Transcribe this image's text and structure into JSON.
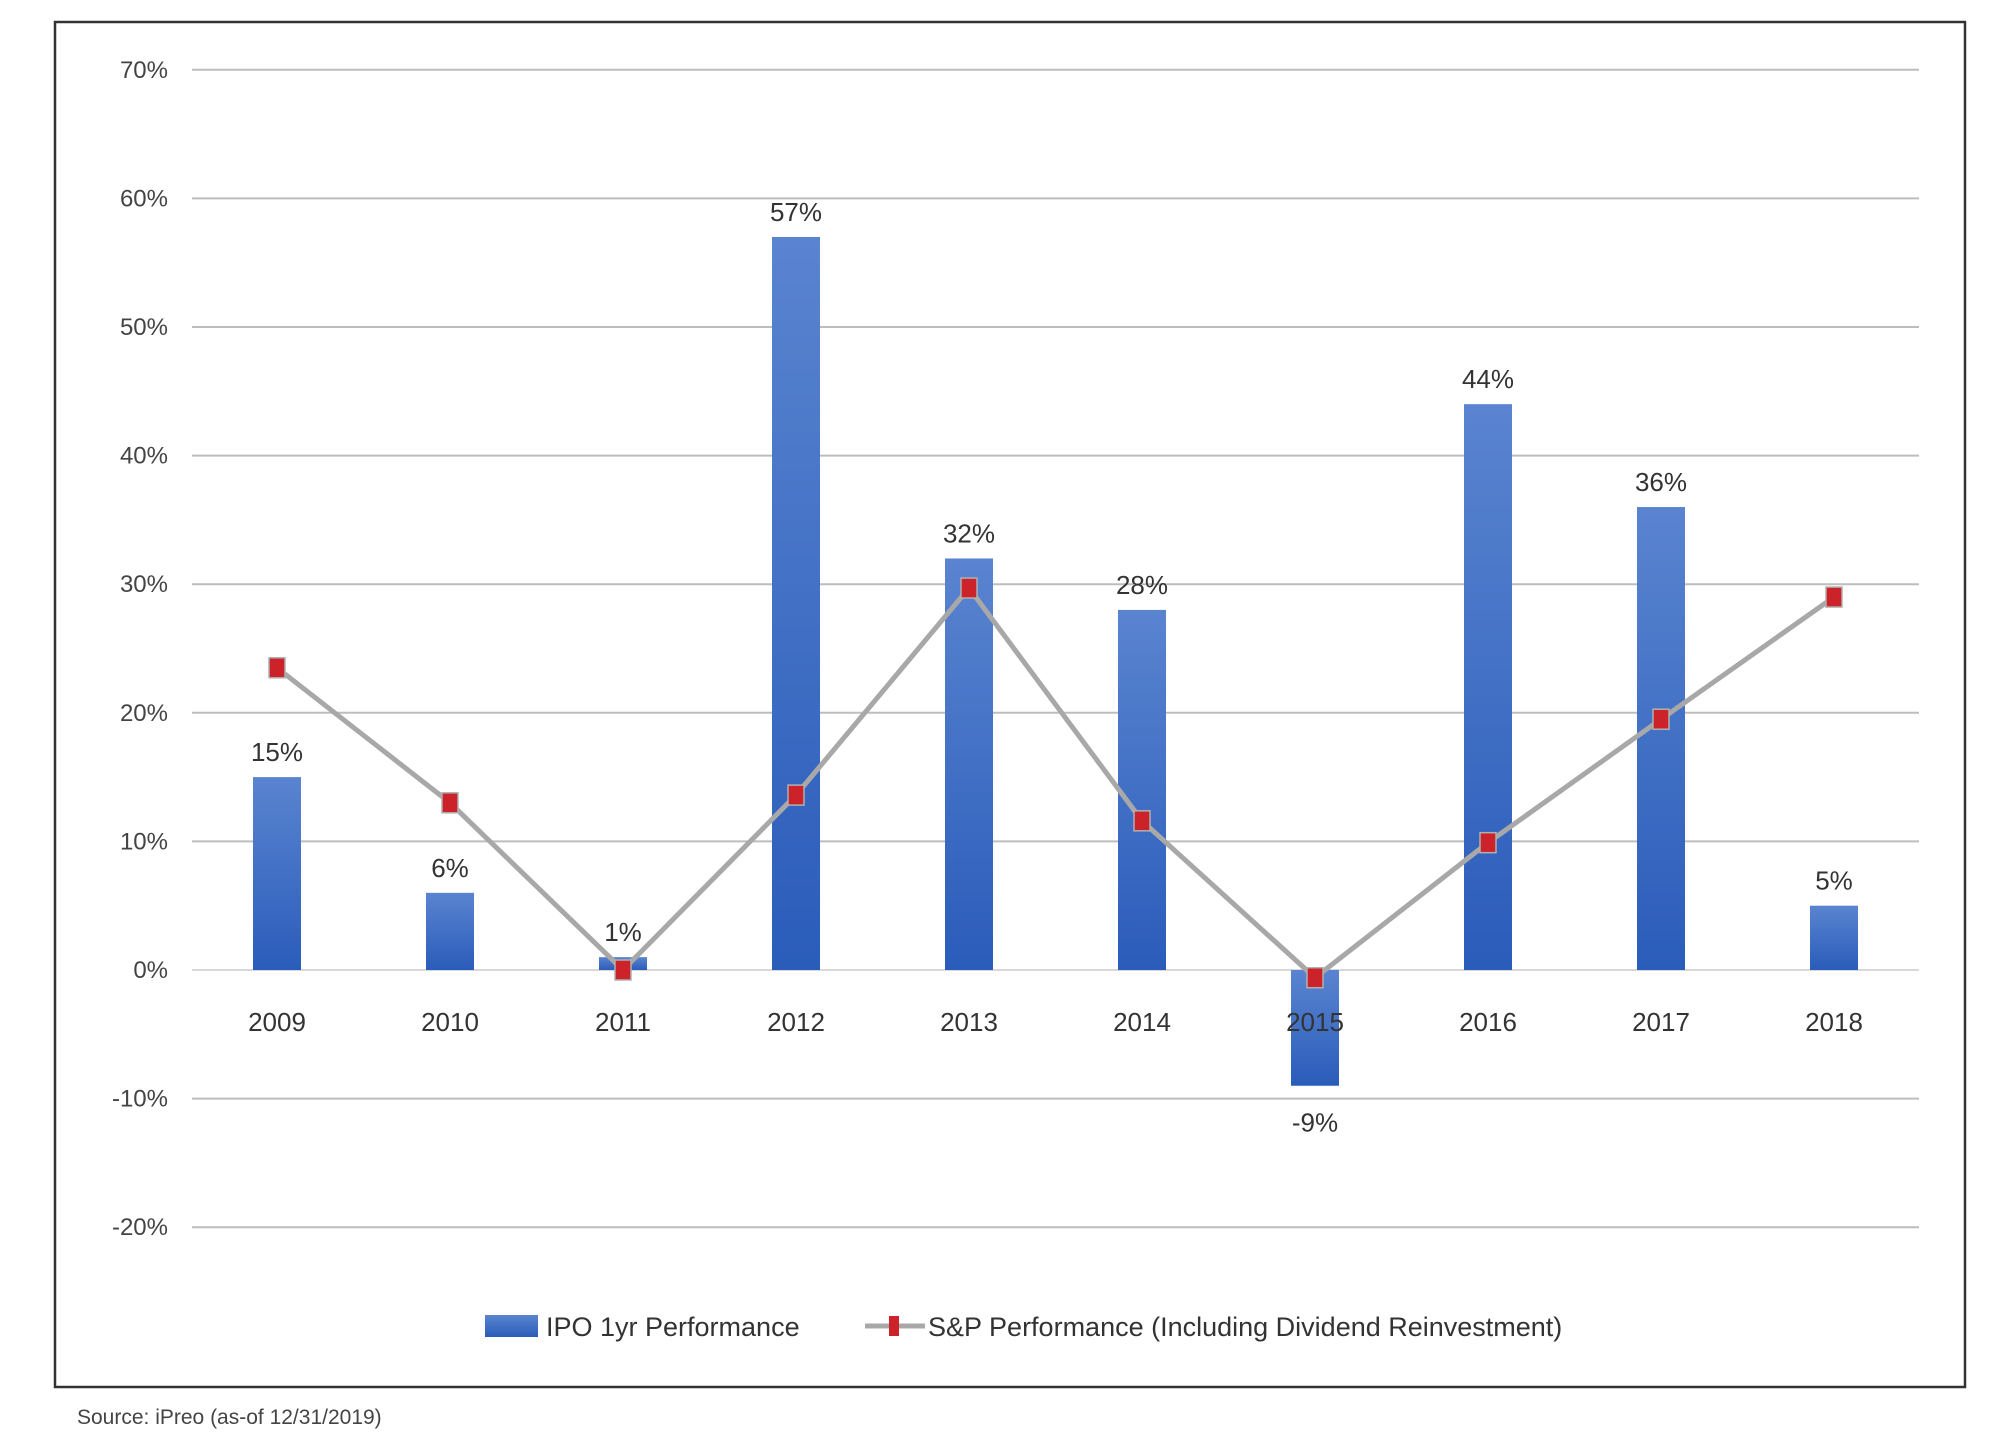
{
  "chart_data": {
    "type": "bar",
    "title": "",
    "xlabel": "",
    "ylabel": "",
    "ylim": [
      -20,
      70
    ],
    "yticks": [
      -20,
      -10,
      0,
      10,
      20,
      30,
      40,
      50,
      60,
      70
    ],
    "ytick_labels": [
      "-20%",
      "-10%",
      "0%",
      "10%",
      "20%",
      "30%",
      "40%",
      "50%",
      "60%",
      "70%"
    ],
    "grid": true,
    "legend_position": "bottom",
    "categories": [
      "2009",
      "2010",
      "2011",
      "2012",
      "2013",
      "2014",
      "2015",
      "2016",
      "2017",
      "2018"
    ],
    "series": [
      {
        "name": "IPO 1yr Performance",
        "type": "bar",
        "color": "#3a6cc8",
        "values": [
          15,
          6,
          1,
          57,
          32,
          28,
          -9,
          44,
          36,
          5
        ],
        "labels": [
          "15%",
          "6%",
          "1%",
          "57%",
          "32%",
          "28%",
          "-9%",
          "44%",
          "36%",
          "5%"
        ]
      },
      {
        "name": "S&P Performance (Including Dividend Reinvestment)",
        "type": "line",
        "color": "#a8a8a8",
        "marker_color": "#cc2229",
        "values": [
          23.5,
          13,
          0,
          13.6,
          29.7,
          11.6,
          -0.6,
          9.9,
          19.5,
          29
        ]
      }
    ]
  },
  "source": "Source: iPreo (as-of 12/31/2019)"
}
